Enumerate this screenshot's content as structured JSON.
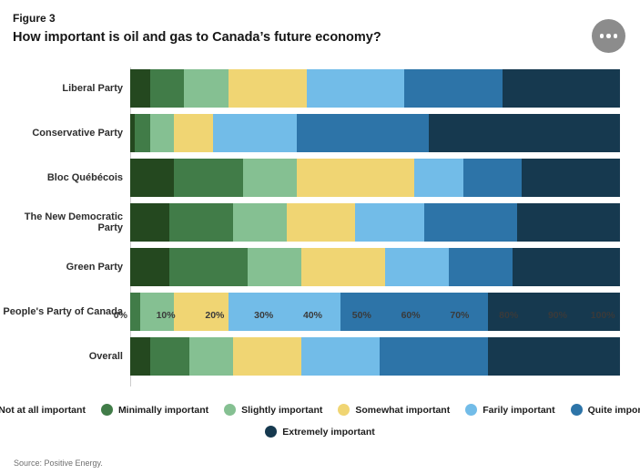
{
  "header": {
    "figure_label": "Figure 3",
    "title": "How important is oil and gas to Canada’s future economy?",
    "menu_icon": "ellipsis-menu"
  },
  "chart_data": {
    "type": "bar",
    "subtype": "horizontal-stacked",
    "stacked": true,
    "unit": "%",
    "title": "How important is oil and gas to Canada’s future economy?",
    "categories": [
      "Liberal Party",
      "Conservative Party",
      "Bloc Québécois",
      "The New Democratic Party",
      "Green Party",
      "People's Party of Canada",
      "Overall"
    ],
    "series": [
      {
        "name": "Not at all important",
        "color": "#24481f",
        "values": [
          4,
          1,
          9,
          8,
          8,
          0,
          4
        ]
      },
      {
        "name": "Minimally important",
        "color": "#417c48",
        "values": [
          7,
          3,
          14,
          13,
          16,
          2,
          8
        ]
      },
      {
        "name": "Slightly important",
        "color": "#85c092",
        "values": [
          9,
          5,
          11,
          11,
          11,
          7,
          9
        ]
      },
      {
        "name": "Somewhat important",
        "color": "#f0d573",
        "values": [
          16,
          8,
          24,
          14,
          17,
          11,
          14
        ]
      },
      {
        "name": "Farily important",
        "color": "#72bce8",
        "values": [
          20,
          17,
          10,
          14,
          13,
          23,
          16
        ]
      },
      {
        "name": "Quite important",
        "color": "#2d74a8",
        "values": [
          20,
          27,
          12,
          19,
          13,
          30,
          22
        ]
      },
      {
        "name": "Extremely important",
        "color": "#16394f",
        "values": [
          24,
          39,
          20,
          21,
          22,
          27,
          27
        ]
      }
    ],
    "x_axis": {
      "min": 0,
      "max": 100,
      "ticks": [
        "0%",
        "10%",
        "20%",
        "30%",
        "40%",
        "50%",
        "60%",
        "70%",
        "80%",
        "90%",
        "100%"
      ]
    },
    "grid": false,
    "legend_position": "bottom",
    "legend_rows": [
      6,
      1
    ]
  },
  "source": {
    "text": "Source: Positive Energy."
  }
}
